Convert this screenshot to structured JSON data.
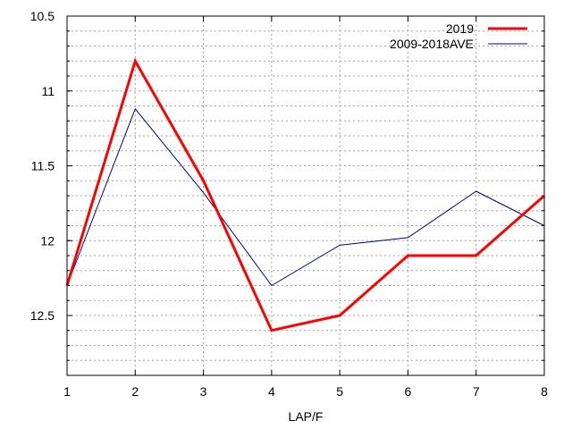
{
  "chart_data": {
    "type": "line",
    "title": "",
    "xlabel": "LAP/F",
    "ylabel": "",
    "x": [
      1,
      2,
      3,
      4,
      5,
      6,
      7,
      8
    ],
    "xlim": [
      1,
      8
    ],
    "ylim": [
      10.5,
      12.9
    ],
    "y_inverted": true,
    "x_ticks": [
      1,
      2,
      3,
      4,
      5,
      6,
      7,
      8
    ],
    "y_ticks": [
      10.5,
      11,
      11.5,
      12,
      12.5
    ],
    "y_tick_labels": [
      "10.5",
      "11",
      "11.5",
      "12",
      "12.5"
    ],
    "grid": true,
    "legend_position": "top-right",
    "series": [
      {
        "name": "2019",
        "color": "#ff0000",
        "values": [
          12.3,
          10.8,
          11.6,
          12.6,
          12.5,
          12.1,
          12.1,
          11.7
        ]
      },
      {
        "name": "2009-2018AVE",
        "color": "#000080",
        "values": [
          12.3,
          11.12,
          11.68,
          12.3,
          12.03,
          11.98,
          11.67,
          11.9
        ]
      }
    ]
  }
}
